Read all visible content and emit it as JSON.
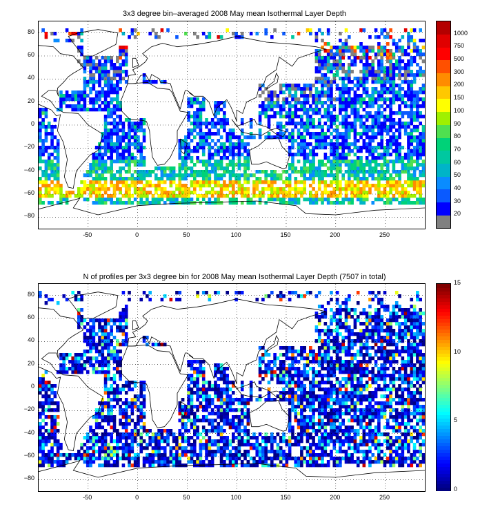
{
  "chart_data": [
    {
      "type": "heatmap",
      "title": "3x3 degree bin–averaged 2008 May mean Isothermal Layer Depth",
      "x_ticks": [
        "-50",
        "0",
        "50",
        "100",
        "150",
        "200",
        "250"
      ],
      "x_tick_values": [
        -50,
        0,
        50,
        100,
        150,
        200,
        250
      ],
      "y_ticks": [
        "80",
        "60",
        "40",
        "20",
        "0",
        "−20",
        "−40",
        "−60",
        "−80"
      ],
      "y_tick_values": [
        80,
        60,
        40,
        20,
        0,
        -20,
        -40,
        -60,
        -80
      ],
      "xlim": [
        -100,
        290
      ],
      "ylim": [
        -90,
        90
      ],
      "grid": "dotted",
      "colorbar": {
        "labels": [
          "20",
          "30",
          "40",
          "50",
          "60",
          "70",
          "80",
          "90",
          "100",
          "150",
          "200",
          "300",
          "500",
          "750",
          "1000"
        ],
        "colors": [
          "#808080",
          "#0000ff",
          "#0a5aff",
          "#0a8cff",
          "#00b4c8",
          "#00c8a0",
          "#00d278",
          "#50e050",
          "#a0f000",
          "#ffff00",
          "#ffc800",
          "#ff8c00",
          "#ff5000",
          "#ff0000",
          "#e00000",
          "#b40000"
        ]
      },
      "scheme": "ild",
      "seed": 7
    },
    {
      "type": "heatmap",
      "title": "N of profiles per 3x3 degree bin for 2008 May mean Isothermal Layer Depth  (7507 in total)",
      "x_ticks": [
        "-50",
        "0",
        "50",
        "100",
        "150",
        "200",
        "250"
      ],
      "x_tick_values": [
        -50,
        0,
        50,
        100,
        150,
        200,
        250
      ],
      "y_ticks": [
        "80",
        "60",
        "40",
        "20",
        "0",
        "−20",
        "−40",
        "−60",
        "−80"
      ],
      "y_tick_values": [
        80,
        60,
        40,
        20,
        0,
        -20,
        -40,
        -60,
        -80
      ],
      "xlim": [
        -100,
        290
      ],
      "ylim": [
        -90,
        90
      ],
      "grid": "dotted",
      "colorbar": {
        "labels": [
          "0",
          "5",
          "10",
          "15"
        ],
        "label_values": [
          0,
          5,
          10,
          15
        ],
        "range": [
          0,
          15
        ]
      },
      "scheme": "count",
      "seed": 19
    }
  ]
}
